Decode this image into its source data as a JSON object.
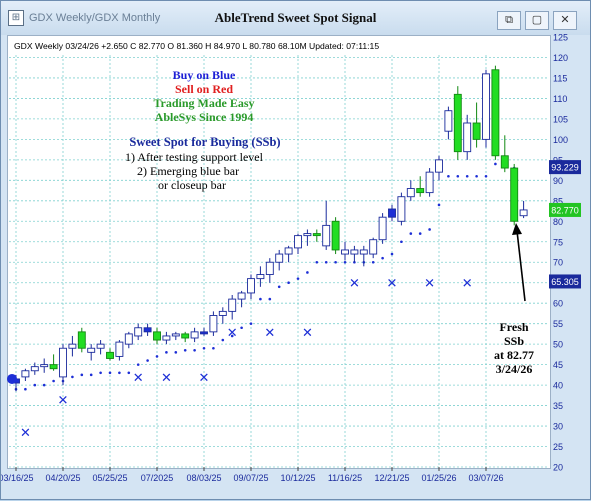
{
  "window": {
    "tab_title": "GDX  Weekly/GDX  Monthly",
    "title": "AbleTrend Sweet Spot Signal",
    "buttons": [
      "restore",
      "maximize",
      "close"
    ]
  },
  "chart_data": {
    "type": "candlestick",
    "info_line": "GDX  Weekly 03/24/26 +2.650 C 82.770 O 81.360 H 84.970 L 80.780 68.10M Updated: 07:11:15",
    "ylim": [
      20,
      125
    ],
    "y_ticks": [
      20,
      25,
      30,
      35,
      40,
      45,
      50,
      55,
      60,
      65,
      70,
      75,
      80,
      85,
      90,
      95,
      100,
      105,
      110,
      115,
      120,
      125
    ],
    "x_tick_labels": [
      "03/16/25",
      "04/20/25",
      "05/25/25",
      "07/2025",
      "08/03/25",
      "09/07/25",
      "10/12/25",
      "11/16/25",
      "12/21/25",
      "01/25/26",
      "03/07/26"
    ],
    "x_tick_index": [
      0,
      5,
      10,
      15,
      20,
      25,
      30,
      35,
      40,
      45,
      50
    ],
    "price_labels": [
      {
        "value": 93.229,
        "text": "93.229",
        "color": "#1a2a9c"
      },
      {
        "value": 82.77,
        "text": "82.770",
        "color": "#22c422"
      },
      {
        "value": 65.305,
        "text": "65.305",
        "color": "#1a2a9c"
      }
    ],
    "legend": [
      {
        "text": "Buy on Blue",
        "color": "#1d1fd6"
      },
      {
        "text": "Sell on Red",
        "color": "#e02020"
      },
      {
        "text": "Trading Made Easy",
        "color": "#2a9a2a"
      },
      {
        "text": "AbleSys Since 1994",
        "color": "#2a9a2a"
      }
    ],
    "sweet_spot": {
      "title": "Sweet Spot for Buying (SSb)",
      "lines": [
        "1) After testing support level",
        "2) Emerging blue bar",
        "or closeup bar"
      ]
    },
    "fresh_note": [
      "Fresh",
      "SSb",
      "at 82.77",
      "3/24/26"
    ],
    "colors": {
      "up": "#ffffff",
      "blue": "#1d2fd6",
      "green": "#22dd22",
      "outline": "#1a2a9c",
      "grid": "#7fd0cf",
      "axis_text": "#1a2a9c"
    },
    "candles": [
      {
        "o": 40.5,
        "h": 42.5,
        "l": 38.5,
        "c": 41.5,
        "fill": "blue"
      },
      {
        "o": 42,
        "h": 44,
        "l": 41,
        "c": 43.5,
        "fill": "up"
      },
      {
        "o": 43.5,
        "h": 45.5,
        "l": 42.5,
        "c": 44.5,
        "fill": "up"
      },
      {
        "o": 44.5,
        "h": 46.5,
        "l": 43,
        "c": 45,
        "fill": "up"
      },
      {
        "o": 45,
        "h": 47.5,
        "l": 43.5,
        "c": 44,
        "fill": "green"
      },
      {
        "o": 42,
        "h": 50,
        "l": 40,
        "c": 49,
        "fill": "up"
      },
      {
        "o": 49,
        "h": 52,
        "l": 47,
        "c": 50,
        "fill": "up"
      },
      {
        "o": 53,
        "h": 54,
        "l": 48,
        "c": 49,
        "fill": "green"
      },
      {
        "o": 48,
        "h": 50,
        "l": 46,
        "c": 49,
        "fill": "up"
      },
      {
        "o": 49,
        "h": 51,
        "l": 47.5,
        "c": 50,
        "fill": "up"
      },
      {
        "o": 48,
        "h": 49,
        "l": 46,
        "c": 46.5,
        "fill": "green"
      },
      {
        "o": 47,
        "h": 51,
        "l": 46,
        "c": 50.5,
        "fill": "up"
      },
      {
        "o": 50,
        "h": 53,
        "l": 49,
        "c": 52.5,
        "fill": "up"
      },
      {
        "o": 52,
        "h": 55,
        "l": 51,
        "c": 54,
        "fill": "up"
      },
      {
        "o": 54,
        "h": 55,
        "l": 52,
        "c": 53,
        "fill": "blue"
      },
      {
        "o": 53,
        "h": 54,
        "l": 50,
        "c": 51,
        "fill": "green"
      },
      {
        "o": 51,
        "h": 53,
        "l": 50,
        "c": 52,
        "fill": "up"
      },
      {
        "o": 52,
        "h": 53,
        "l": 51,
        "c": 52.5,
        "fill": "up"
      },
      {
        "o": 52.5,
        "h": 53,
        "l": 50.5,
        "c": 51.5,
        "fill": "green"
      },
      {
        "o": 51.5,
        "h": 54,
        "l": 50.5,
        "c": 53,
        "fill": "up"
      },
      {
        "o": 53,
        "h": 54,
        "l": 52,
        "c": 52.5,
        "fill": "blue"
      },
      {
        "o": 53,
        "h": 58,
        "l": 52,
        "c": 57,
        "fill": "up"
      },
      {
        "o": 57,
        "h": 59,
        "l": 55,
        "c": 58,
        "fill": "up"
      },
      {
        "o": 58,
        "h": 62,
        "l": 56,
        "c": 61,
        "fill": "up"
      },
      {
        "o": 61,
        "h": 63,
        "l": 59,
        "c": 62.5,
        "fill": "up"
      },
      {
        "o": 62.5,
        "h": 67,
        "l": 61,
        "c": 66,
        "fill": "up"
      },
      {
        "o": 66,
        "h": 69,
        "l": 64,
        "c": 67,
        "fill": "up"
      },
      {
        "o": 67,
        "h": 71,
        "l": 65,
        "c": 70,
        "fill": "up"
      },
      {
        "o": 70,
        "h": 73,
        "l": 68,
        "c": 72,
        "fill": "up"
      },
      {
        "o": 72,
        "h": 74,
        "l": 70,
        "c": 73.5,
        "fill": "up"
      },
      {
        "o": 73.5,
        "h": 77,
        "l": 72,
        "c": 76.5,
        "fill": "up"
      },
      {
        "o": 76.5,
        "h": 78,
        "l": 74,
        "c": 77,
        "fill": "up"
      },
      {
        "o": 77,
        "h": 78,
        "l": 75,
        "c": 76.5,
        "fill": "green"
      },
      {
        "o": 74,
        "h": 85,
        "l": 73,
        "c": 79,
        "fill": "up"
      },
      {
        "o": 80,
        "h": 81,
        "l": 72,
        "c": 73,
        "fill": "green"
      },
      {
        "o": 73,
        "h": 75,
        "l": 70.5,
        "c": 72,
        "fill": "up"
      },
      {
        "o": 72,
        "h": 74,
        "l": 70,
        "c": 73,
        "fill": "up"
      },
      {
        "o": 73,
        "h": 74,
        "l": 69,
        "c": 72,
        "fill": "up"
      },
      {
        "o": 72,
        "h": 76,
        "l": 71,
        "c": 75.5,
        "fill": "up"
      },
      {
        "o": 75.5,
        "h": 82,
        "l": 74.5,
        "c": 81,
        "fill": "up"
      },
      {
        "o": 81,
        "h": 84,
        "l": 80,
        "c": 83,
        "fill": "blue"
      },
      {
        "o": 80,
        "h": 87,
        "l": 79,
        "c": 86,
        "fill": "up"
      },
      {
        "o": 86,
        "h": 90,
        "l": 85,
        "c": 88,
        "fill": "up"
      },
      {
        "o": 88,
        "h": 91,
        "l": 86,
        "c": 87,
        "fill": "green"
      },
      {
        "o": 87,
        "h": 93,
        "l": 86,
        "c": 92,
        "fill": "up"
      },
      {
        "o": 92,
        "h": 96,
        "l": 90,
        "c": 95,
        "fill": "up"
      },
      {
        "o": 102,
        "h": 108,
        "l": 100,
        "c": 107,
        "fill": "up"
      },
      {
        "o": 111,
        "h": 113,
        "l": 95,
        "c": 97,
        "fill": "green"
      },
      {
        "o": 97,
        "h": 106,
        "l": 95,
        "c": 104,
        "fill": "up"
      },
      {
        "o": 104,
        "h": 109,
        "l": 98,
        "c": 100,
        "fill": "green"
      },
      {
        "o": 100,
        "h": 117,
        "l": 98,
        "c": 116,
        "fill": "up"
      },
      {
        "o": 117,
        "h": 118,
        "l": 95,
        "c": 96,
        "fill": "green"
      },
      {
        "o": 96,
        "h": 101,
        "l": 92,
        "c": 93,
        "fill": "green"
      },
      {
        "o": 93,
        "h": 94,
        "l": 79,
        "c": 80,
        "fill": "green"
      },
      {
        "o": 81.36,
        "h": 84.97,
        "l": 80.78,
        "c": 82.77,
        "fill": "up"
      }
    ],
    "dots": [
      [
        0,
        39
      ],
      [
        1,
        39
      ],
      [
        2,
        40
      ],
      [
        3,
        40
      ],
      [
        4,
        41
      ],
      [
        5,
        41
      ],
      [
        6,
        42
      ],
      [
        7,
        42.5
      ],
      [
        8,
        42.5
      ],
      [
        9,
        43
      ],
      [
        10,
        43
      ],
      [
        11,
        43
      ],
      [
        12,
        43
      ],
      [
        13,
        45
      ],
      [
        14,
        46
      ],
      [
        15,
        47
      ],
      [
        16,
        48
      ],
      [
        17,
        48
      ],
      [
        18,
        48.5
      ],
      [
        19,
        48.5
      ],
      [
        20,
        49
      ],
      [
        21,
        49
      ],
      [
        22,
        51
      ],
      [
        23,
        52
      ],
      [
        24,
        54
      ],
      [
        25,
        55
      ],
      [
        26,
        61
      ],
      [
        27,
        61
      ],
      [
        28,
        64
      ],
      [
        29,
        65
      ],
      [
        30,
        66
      ],
      [
        31,
        67.5
      ],
      [
        32,
        70
      ],
      [
        33,
        70
      ],
      [
        34,
        70
      ],
      [
        35,
        70
      ],
      [
        36,
        70
      ],
      [
        37,
        70
      ],
      [
        38,
        70
      ],
      [
        39,
        71
      ],
      [
        40,
        72
      ],
      [
        41,
        75
      ],
      [
        42,
        77
      ],
      [
        43,
        77
      ],
      [
        44,
        78
      ],
      [
        45,
        84
      ],
      [
        46,
        91
      ],
      [
        47,
        91
      ],
      [
        48,
        91
      ],
      [
        49,
        91
      ],
      [
        50,
        91
      ],
      [
        51,
        94
      ],
      [
        52,
        94
      ],
      [
        53,
        93
      ]
    ],
    "x_marks": [
      [
        1,
        28.5
      ],
      [
        5,
        36.5
      ],
      [
        13,
        42
      ],
      [
        16,
        42
      ],
      [
        20,
        42
      ],
      [
        23,
        53
      ],
      [
        27,
        53
      ],
      [
        31,
        53
      ],
      [
        36,
        65
      ],
      [
        40,
        65
      ],
      [
        44,
        65
      ],
      [
        48,
        65
      ]
    ],
    "signal_circle": {
      "index": 0,
      "value": 41.5
    }
  }
}
